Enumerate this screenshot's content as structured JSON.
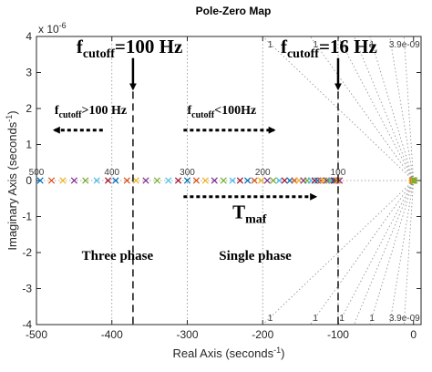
{
  "chart_data": {
    "type": "scatter",
    "title": "Pole-Zero Map",
    "xlabel": "Real Axis (seconds",
    "xlabel_sup": "-1",
    "xlabel_close": ")",
    "ylabel": "Imaginary Axis (seconds",
    "ylabel_sup": "-1",
    "ylabel_close": ")",
    "y_exponent_base": "x 10",
    "y_exponent_power": "-6",
    "xlim": [
      -500,
      10
    ],
    "ylim": [
      -4,
      4
    ],
    "x_ticks": [
      -500,
      -400,
      -300,
      -200,
      -100,
      0
    ],
    "x_tick_labels": [
      "-500",
      "-400",
      "-300",
      "-200",
      "-100",
      "0"
    ],
    "y_ticks": [
      -4,
      -3,
      -2,
      -1,
      0,
      1,
      2,
      3,
      4
    ],
    "y_tick_labels": [
      "-4",
      "-3",
      "-2",
      "-1",
      "0",
      "1",
      "2",
      "3",
      "4"
    ],
    "grid": "dotted",
    "frequency_grid_labels": [
      {
        "text": "500",
        "x": -500,
        "y": 0.25
      },
      {
        "text": "400",
        "x": -400,
        "y": 0.25
      },
      {
        "text": "300",
        "x": -300,
        "y": 0.25
      },
      {
        "text": "200",
        "x": -200,
        "y": 0.25
      },
      {
        "text": "100",
        "x": -100,
        "y": 0.25
      },
      {
        "text": "1",
        "x": -190,
        "y": 3.8
      },
      {
        "text": "1",
        "x": -130,
        "y": 3.8
      },
      {
        "text": "1",
        "x": -95,
        "y": 3.8
      },
      {
        "text": "1",
        "x": -55,
        "y": 3.8
      },
      {
        "text": "3.9e-09",
        "x": -12,
        "y": 3.8
      },
      {
        "text": "1",
        "x": -190,
        "y": -3.8
      },
      {
        "text": "1",
        "x": -130,
        "y": -3.8
      },
      {
        "text": "1",
        "x": -95,
        "y": -3.8
      },
      {
        "text": "1",
        "x": -55,
        "y": -3.8
      },
      {
        "text": "3.9e-09",
        "x": -12,
        "y": -3.8
      }
    ],
    "poles_x": [
      -495,
      -480,
      -465,
      -450,
      -435,
      -420,
      -405,
      -395,
      -380,
      -368,
      -355,
      -340,
      -325,
      -312,
      -300,
      -288,
      -276,
      -264,
      -252,
      -240,
      -230,
      -220,
      -211,
      -202,
      -194,
      -186,
      -178,
      -171,
      -164,
      -158,
      -152,
      -146,
      -141,
      -136,
      -131,
      -127,
      -123,
      -119,
      -115,
      -112,
      -109,
      -106,
      -104,
      -102,
      -100,
      -98
    ],
    "pole_colors": [
      "#0072BD",
      "#D95319",
      "#EDB120",
      "#7E2F8E",
      "#77AC30",
      "#4DBEEE",
      "#A2142F"
    ],
    "origin_poles": [
      {
        "x": -2,
        "y": 0,
        "color": "#EDB120"
      },
      {
        "x": -1,
        "y": 0,
        "color": "#D95319"
      },
      {
        "x": 0,
        "y": 0,
        "color": "#EDB120"
      },
      {
        "x": 1,
        "y": 0,
        "color": "#77AC30"
      }
    ],
    "cutoff_lines": [
      {
        "x": -372,
        "label_main": "f",
        "label_sub": "cutoff",
        "label_value": "=100 Hz"
      },
      {
        "x": -100,
        "label_main": "f",
        "label_sub": "cutoff",
        "label_value": "=16 Hz"
      }
    ],
    "region_arrows": [
      {
        "from_x": -412,
        "to_x": -476,
        "y": 1.4,
        "label_main": "f",
        "label_sub": "cutoff",
        "label_value": ">100 Hz"
      },
      {
        "from_x": -305,
        "to_x": -185,
        "y": 1.4,
        "label_main": "f",
        "label_sub": "cutoff",
        "label_value": "<100Hz"
      },
      {
        "from_x": -305,
        "to_x": -130,
        "y": -0.45,
        "label_main": "T",
        "label_sub": "maf",
        "label_value": ""
      }
    ],
    "phase_labels": [
      {
        "text": "Three phase",
        "x": -440,
        "y": -2.2
      },
      {
        "text": "Single phase",
        "x": -258,
        "y": -2.2
      }
    ]
  }
}
